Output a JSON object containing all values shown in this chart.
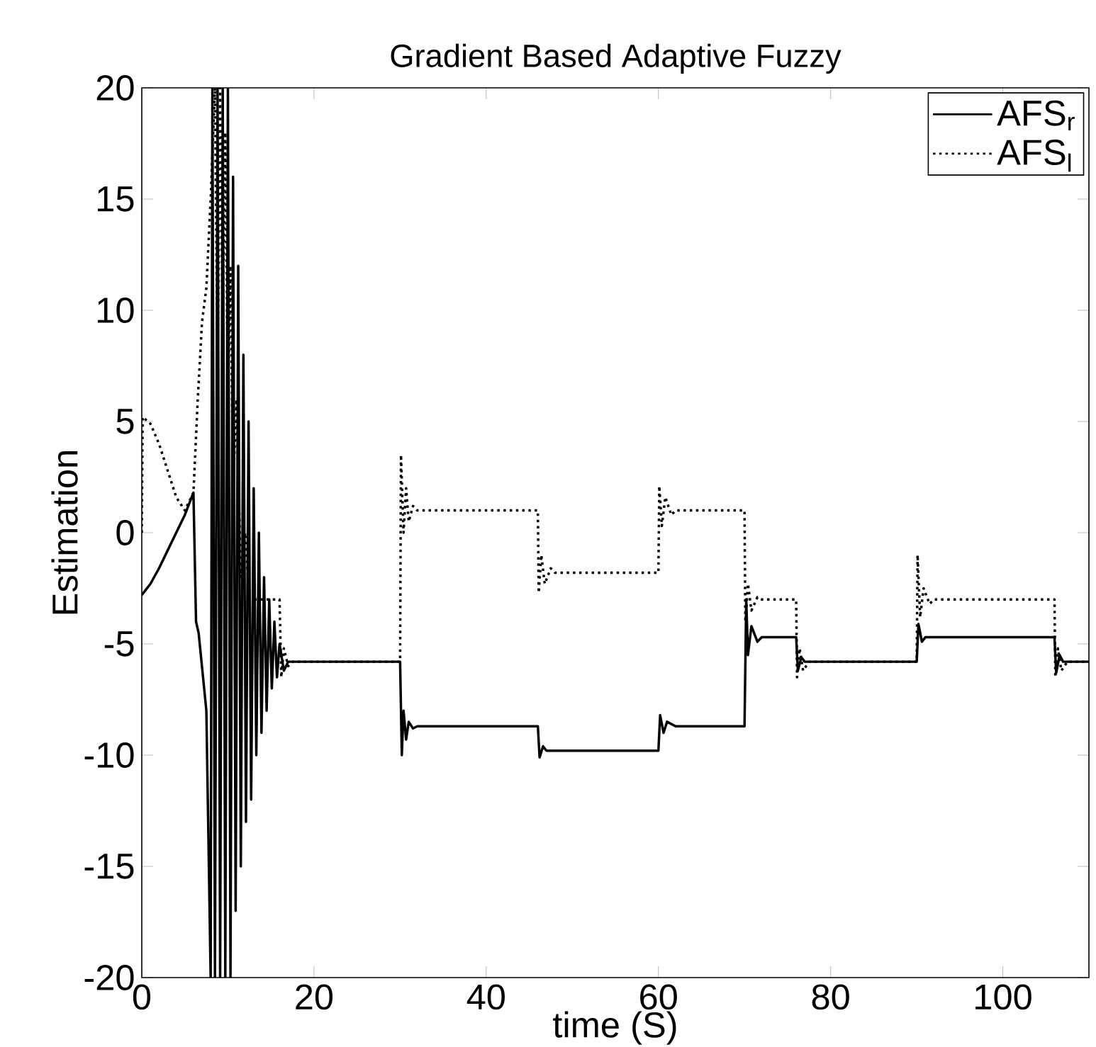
{
  "chart_data": {
    "type": "line",
    "title": "Gradient Based Adaptive Fuzzy",
    "xlabel": "time (S)",
    "ylabel": "Estimation",
    "xlim": [
      0,
      110
    ],
    "ylim": [
      -20,
      20
    ],
    "xticks": [
      0,
      20,
      40,
      60,
      80,
      100
    ],
    "yticks": [
      -20,
      -15,
      -10,
      -5,
      0,
      5,
      10,
      15,
      20
    ],
    "grid": false,
    "legend": "top right",
    "series": [
      {
        "name": "AFS$_{r}$",
        "color": "#000000",
        "line_style": "solid",
        "x": [
          0,
          1,
          2,
          3,
          4,
          5,
          6,
          6.3,
          6.6,
          7.5,
          8,
          8.2,
          8.5,
          8.8,
          9.1,
          9.4,
          9.7,
          10,
          10.3,
          10.6,
          10.9,
          11.2,
          11.5,
          11.8,
          12.1,
          12.4,
          12.7,
          13,
          13.3,
          13.6,
          13.9,
          14.2,
          14.5,
          14.8,
          15.1,
          15.4,
          15.7,
          16,
          16.5,
          17,
          30,
          30.2,
          30.4,
          30.7,
          31,
          31.5,
          32,
          46,
          46.2,
          46.6,
          47,
          60,
          60.2,
          60.6,
          61,
          62,
          70,
          70.2,
          70.4,
          70.8,
          71.5,
          72,
          76,
          76.2,
          76.6,
          77,
          90,
          90.2,
          90.6,
          91,
          106,
          106.2,
          106.6,
          107,
          110
        ],
        "values": [
          -2.8,
          -2.3,
          -1.6,
          -0.8,
          0,
          0.8,
          1.8,
          -4,
          -4.5,
          -8,
          -20,
          20,
          -20,
          20,
          -20,
          20,
          -20,
          20,
          -20,
          16,
          -17,
          12,
          -15,
          8,
          -13,
          5,
          -12,
          2,
          -10,
          0,
          -9,
          -2,
          -8,
          -3,
          -7,
          -4,
          -6.5,
          -5,
          -6.2,
          -5.8,
          -5.8,
          -10,
          -8,
          -9.3,
          -8.5,
          -8.8,
          -8.7,
          -8.7,
          -10.1,
          -9.6,
          -9.8,
          -9.8,
          -8.2,
          -9,
          -8.5,
          -8.7,
          -8.7,
          -3,
          -5.5,
          -4.2,
          -4.9,
          -4.7,
          -4.7,
          -6.2,
          -5.6,
          -5.8,
          -5.8,
          -4.1,
          -4.9,
          -4.7,
          -4.7,
          -6.3,
          -5.5,
          -5.8,
          -5.8
        ]
      },
      {
        "name": "AFS$_{l}$",
        "color": "#000000",
        "line_style": "dotted",
        "x": [
          0,
          0.1,
          1,
          2,
          3,
          4,
          5,
          6,
          6.5,
          7,
          7.5,
          8,
          8.5,
          8.8,
          9.1,
          9.4,
          9.7,
          10,
          10.3,
          10.6,
          11,
          11.5,
          12,
          12.5,
          13,
          16,
          16.2,
          16.5,
          17,
          17.5,
          30,
          30.1,
          30.4,
          30.7,
          31,
          31.5,
          32,
          46,
          46.1,
          46.4,
          46.8,
          47.5,
          48,
          60,
          60.1,
          60.4,
          60.8,
          61.5,
          62,
          70,
          70.1,
          70.4,
          70.8,
          71.5,
          72,
          76,
          76.1,
          76.4,
          76.8,
          77.5,
          90,
          90.1,
          90.4,
          90.8,
          91.5,
          92,
          106,
          106.1,
          106.4,
          106.8,
          107.5,
          110
        ],
        "values": [
          0,
          5.2,
          4.9,
          4,
          2.8,
          1.6,
          1,
          1.8,
          6,
          9.5,
          11,
          15,
          20,
          7,
          20,
          9,
          18,
          6,
          12,
          2,
          6,
          -2,
          0,
          -3,
          -3,
          -3,
          -6.5,
          -5.2,
          -6,
          -5.8,
          -5.8,
          3.5,
          0,
          2,
          0.5,
          1.2,
          1,
          1,
          -2.7,
          -1,
          -2.3,
          -1.6,
          -1.8,
          -1.8,
          2.1,
          0.3,
          1.6,
          0.8,
          1,
          1,
          -4,
          -2.3,
          -3.5,
          -2.9,
          -3,
          -3,
          -6.5,
          -5.2,
          -6.2,
          -5.8,
          -5.8,
          -1,
          -3.8,
          -2.5,
          -3.2,
          -3,
          -3,
          -6.5,
          -5.2,
          -6.2,
          -5.8,
          -5.8
        ]
      }
    ]
  }
}
